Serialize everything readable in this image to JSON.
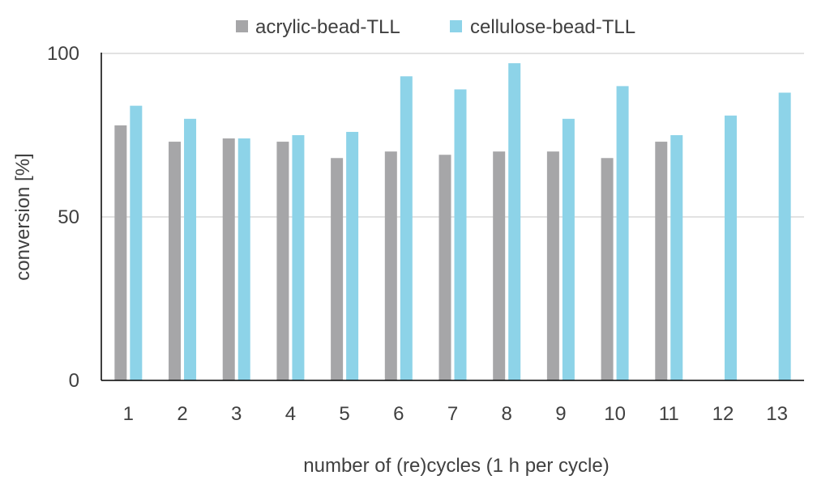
{
  "chart_data": {
    "type": "bar",
    "title": "",
    "xlabel": "number of (re)cycles (1 h per cycle)",
    "ylabel": "conversion [%]",
    "ylim": [
      0,
      100
    ],
    "yticks": [
      0,
      50,
      100
    ],
    "grid": true,
    "legend_position": "top-center",
    "categories": [
      "1",
      "2",
      "3",
      "4",
      "5",
      "6",
      "7",
      "8",
      "9",
      "10",
      "11",
      "12",
      "13"
    ],
    "series": [
      {
        "name": "acrylic-bead-TLL",
        "color": "#a6a6a8",
        "values": [
          78,
          73,
          74,
          73,
          68,
          70,
          69,
          70,
          70,
          68,
          73,
          null,
          null
        ]
      },
      {
        "name": "cellulose-bead-TLL",
        "color": "#8dd3e8",
        "values": [
          84,
          80,
          74,
          75,
          76,
          93,
          89,
          97,
          80,
          90,
          75,
          81,
          88
        ]
      }
    ]
  }
}
